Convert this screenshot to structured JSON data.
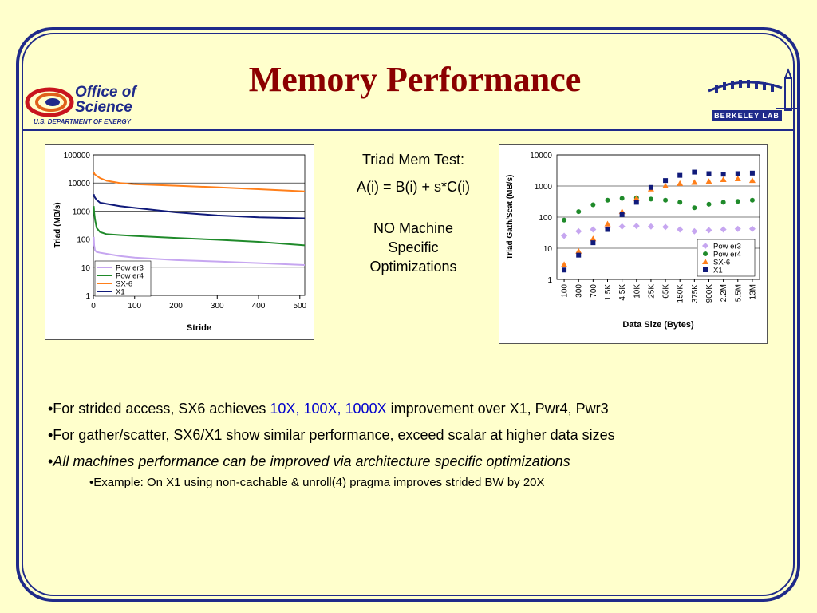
{
  "title": "Memory Performance",
  "logos": {
    "office_of_science": {
      "line1": "Office of",
      "line2": "Science",
      "dept": "U.S. DEPARTMENT OF ENERGY"
    },
    "berkeley_lab": "BERKELEY LAB"
  },
  "middle_text": {
    "line1": "Triad Mem Test:",
    "line2": "A(i) = B(i) + s*C(i)",
    "line3": "NO Machine",
    "line4": "Specific",
    "line5": "Optimizations"
  },
  "bullets": {
    "b1_prefix": "•For strided access, SX6 achieves ",
    "b1_h1": "10X",
    "b1_sep1": ", ",
    "b1_h2": "100X",
    "b1_sep2": ", ",
    "b1_h3": "1000X",
    "b1_suffix": " improvement over X1, Pwr4, Pwr3",
    "b2": "•For gather/scatter, SX6/X1 show similar performance, exceed scalar at higher data sizes",
    "b3_bullet": "•",
    "b3": "All machines performance can be improved via architecture specific optimizations",
    "b4": "•Example: On X1 using non-cachable & unroll(4) pragma improves strided BW by 20X"
  },
  "colors": {
    "power3": "#c6a6f0",
    "power4": "#1f8a2a",
    "sx6": "#ff7f1a",
    "x1": "#101a7a",
    "title": "#8b0000",
    "frame": "#1f2a8a",
    "highlight": "#0000cc"
  },
  "chart_data": [
    {
      "type": "line",
      "xlabel": "Stride",
      "ylabel": "Triad (MB/s)",
      "yscale": "log",
      "ylim": [
        1,
        100000
      ],
      "xlim": [
        0,
        512
      ],
      "xticks": [
        "0",
        "100",
        "200",
        "300",
        "400",
        "500"
      ],
      "yticks": [
        "1",
        "10",
        "100",
        "1000",
        "10000",
        "100000"
      ],
      "legend": "bottom-left",
      "series": [
        {
          "name": "Pow er3",
          "x": [
            1,
            2,
            4,
            8,
            16,
            32,
            64,
            100,
            200,
            300,
            400,
            512
          ],
          "values": [
            120,
            60,
            40,
            35,
            33,
            30,
            25,
            22,
            18,
            16,
            14,
            12
          ]
        },
        {
          "name": "Pow er4",
          "x": [
            1,
            2,
            4,
            8,
            16,
            32,
            64,
            100,
            200,
            300,
            400,
            512
          ],
          "values": [
            1500,
            900,
            500,
            250,
            180,
            150,
            140,
            130,
            110,
            95,
            80,
            60
          ]
        },
        {
          "name": "SX-6",
          "x": [
            1,
            2,
            4,
            8,
            16,
            32,
            64,
            100,
            200,
            300,
            400,
            512
          ],
          "values": [
            25000,
            22000,
            20000,
            18000,
            15000,
            12000,
            10000,
            9000,
            8000,
            7000,
            6000,
            5000
          ]
        },
        {
          "name": "X1",
          "x": [
            1,
            2,
            4,
            8,
            16,
            32,
            64,
            100,
            200,
            300,
            400,
            512
          ],
          "values": [
            4000,
            3500,
            3000,
            2500,
            2000,
            1800,
            1500,
            1300,
            900,
            700,
            600,
            550
          ]
        }
      ]
    },
    {
      "type": "scatter",
      "xlabel": "Data Size (Bytes)",
      "ylabel": "Triad Gath/Scat (MB/s)",
      "yscale": "log",
      "ylim": [
        1,
        10000
      ],
      "categories": [
        "100",
        "300",
        "700",
        "1.5K",
        "4.5K",
        "10K",
        "25K",
        "65K",
        "150K",
        "375K",
        "900K",
        "2.2M",
        "5.5M",
        "13M"
      ],
      "yticks": [
        "1",
        "10",
        "100",
        "1000",
        "10000"
      ],
      "legend": "right",
      "series": [
        {
          "name": "Pow er3",
          "values": [
            25,
            35,
            40,
            45,
            50,
            52,
            50,
            48,
            40,
            35,
            38,
            40,
            42,
            42
          ]
        },
        {
          "name": "Pow er4",
          "values": [
            80,
            150,
            250,
            350,
            400,
            420,
            380,
            350,
            300,
            200,
            260,
            300,
            320,
            350
          ]
        },
        {
          "name": "SX-6",
          "values": [
            3,
            8,
            20,
            60,
            150,
            400,
            800,
            1000,
            1200,
            1300,
            1400,
            1600,
            1700,
            1500
          ]
        },
        {
          "name": "X1",
          "values": [
            2,
            6,
            15,
            40,
            120,
            300,
            900,
            1500,
            2200,
            2800,
            2500,
            2400,
            2500,
            2600
          ]
        }
      ]
    }
  ]
}
